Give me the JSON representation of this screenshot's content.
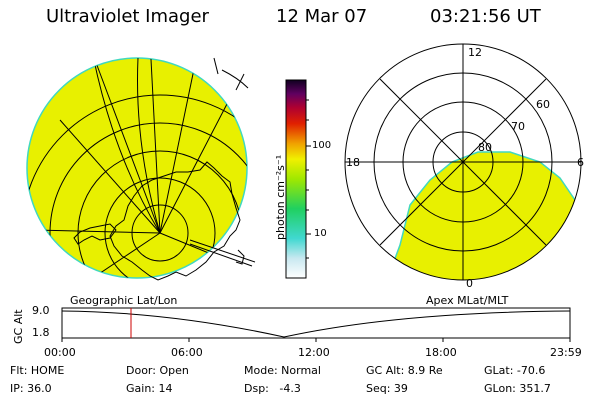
{
  "header": {
    "instrument": "Ultraviolet Imager",
    "date": "12 Mar 07",
    "time": "03:21:56 UT"
  },
  "colorbar": {
    "unit_label": "photon cm⁻²s⁻¹",
    "ticks": [
      "100",
      "10"
    ]
  },
  "maps": {
    "left_caption": "Geographic Lat/Lon",
    "right_caption": "Apex MLat/MLT",
    "polar_lat_labels": [
      "80",
      "70",
      "60"
    ],
    "polar_mlt_labels": [
      "12",
      "18",
      "6",
      "0"
    ]
  },
  "altitude_plot": {
    "ylabel": "GC Alt",
    "ytick_top": "9.0",
    "ytick_bottom": "1.8",
    "xticks": [
      "00:00",
      "06:00",
      "12:00",
      "18:00",
      "23:59"
    ]
  },
  "status": {
    "row1": {
      "flt": "Flt: HOME",
      "door": "Door: Open",
      "mode": "Mode: Normal",
      "gc_alt": "GC Alt: 8.9 Re",
      "glat": "GLat: -70.6"
    },
    "row2": {
      "ip": "IP: 36.0",
      "gain": "Gain: 14",
      "dsp": "Dsp:   -4.3",
      "seq": "Seq: 39",
      "glon": "GLon: 351.7"
    }
  },
  "colors": {
    "disk_fill": "#e8f000",
    "disk_edge": "#40d8c0",
    "grid": "#000000",
    "current_time_marker": "#cc0000"
  }
}
